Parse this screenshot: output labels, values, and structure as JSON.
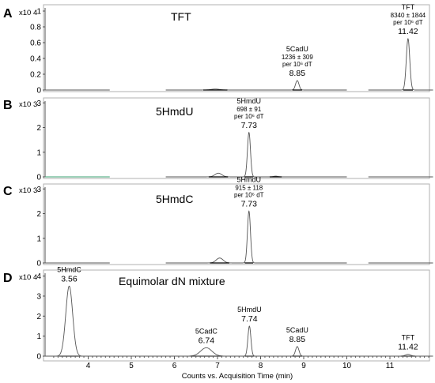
{
  "chart_data": [
    {
      "type": "line",
      "panel": "A",
      "title": "TFT",
      "scale": "x10 4",
      "yticks": [
        "0",
        "0.2",
        "0.4",
        "0.6",
        "0.8",
        "1"
      ],
      "ylim": [
        0,
        1.08
      ],
      "xlim": [
        3.0,
        12.0
      ],
      "peaks": [
        {
          "rt": 8.85,
          "height": 0.12,
          "width": 0.04,
          "name": "5CadU",
          "amount": "1236 ± 309",
          "unit": "per 10⁶ dT",
          "rt_label": "8.85"
        },
        {
          "rt": 11.42,
          "height": 0.65,
          "width": 0.04,
          "name": "TFT",
          "amount": "8340 ± 1844",
          "unit": "per 10⁶ dT",
          "rt_label": "11.42"
        }
      ],
      "minor_peaks": [
        {
          "rt": 6.95,
          "height": 0.012,
          "width": 0.1
        }
      ]
    },
    {
      "type": "line",
      "panel": "B",
      "title": "5HmdU",
      "scale": "x10 3",
      "yticks": [
        "0",
        "1",
        "2",
        "3"
      ],
      "ylim": [
        0,
        3.2
      ],
      "xlim": [
        3.0,
        12.0
      ],
      "peaks": [
        {
          "rt": 7.73,
          "height": 1.8,
          "width": 0.035,
          "name": "5HmdU",
          "amount": "698 ± 91",
          "unit": "per 10⁶ dT",
          "rt_label": "7.73"
        }
      ],
      "minor_peaks": [
        {
          "rt": 7.02,
          "height": 0.15,
          "width": 0.08
        },
        {
          "rt": 8.35,
          "height": 0.03,
          "width": 0.05
        }
      ]
    },
    {
      "type": "line",
      "panel": "C",
      "title": "5HmdC",
      "scale": "x10 3",
      "yticks": [
        "0",
        "1",
        "2",
        "3"
      ],
      "ylim": [
        0,
        3.2
      ],
      "xlim": [
        3.0,
        12.0
      ],
      "peaks": [
        {
          "rt": 7.73,
          "height": 2.1,
          "width": 0.035,
          "name": "5HmdU",
          "amount": "915 ± 118",
          "unit": "per 10⁶ dT",
          "rt_label": "7.73"
        }
      ],
      "minor_peaks": [
        {
          "rt": 7.05,
          "height": 0.2,
          "width": 0.08
        }
      ]
    },
    {
      "type": "line",
      "panel": "D",
      "title": "Equimolar dN mixture",
      "scale": "x10 4",
      "yticks": [
        "0",
        "1",
        "2",
        "3",
        "4"
      ],
      "ylim": [
        0,
        4.3
      ],
      "xlim": [
        3.0,
        12.0
      ],
      "xticks": [
        "4",
        "5",
        "6",
        "7",
        "8",
        "9",
        "10",
        "11"
      ],
      "xlabel": "Counts vs. Acquisition Time (min)",
      "peaks": [
        {
          "rt": 3.56,
          "height": 3.5,
          "width": 0.08,
          "name": "5HmdC",
          "rt_label": "3.56"
        },
        {
          "rt": 6.74,
          "height": 0.42,
          "width": 0.13,
          "name": "5CadC",
          "rt_label": "6.74"
        },
        {
          "rt": 7.74,
          "height": 1.5,
          "width": 0.035,
          "name": "5HmdU",
          "rt_label": "7.74"
        },
        {
          "rt": 8.85,
          "height": 0.48,
          "width": 0.04,
          "name": "5CadU",
          "rt_label": "8.85"
        },
        {
          "rt": 11.42,
          "height": 0.09,
          "width": 0.06,
          "name": "TFT",
          "rt_label": "11.42"
        }
      ],
      "minor_peaks": []
    }
  ]
}
